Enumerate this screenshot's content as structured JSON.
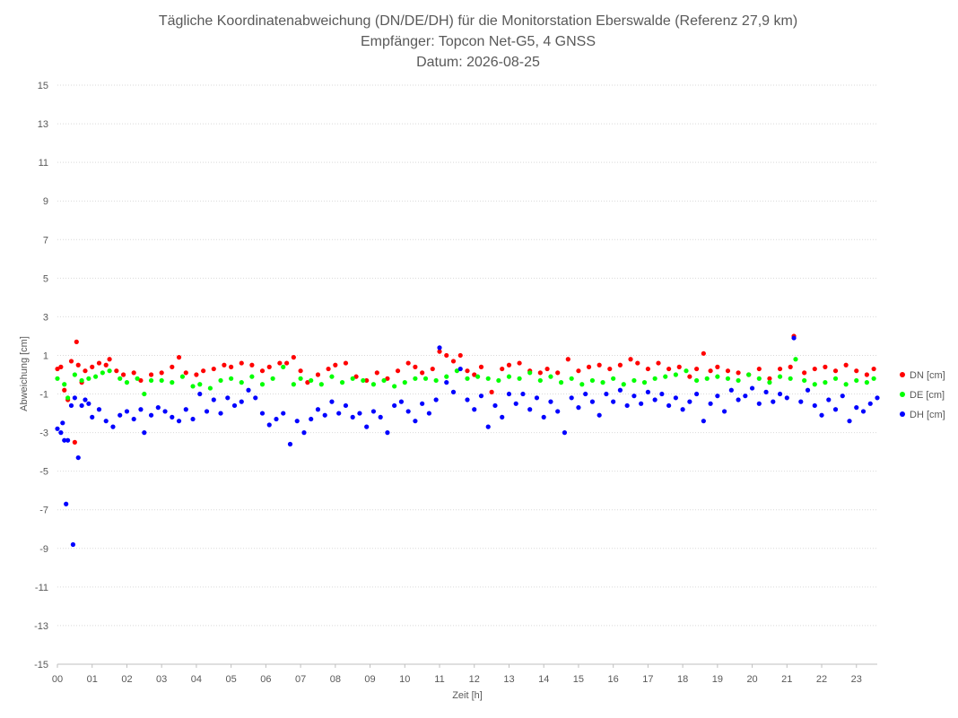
{
  "chart_data": {
    "type": "scatter",
    "title": "Tägliche Koordinatenabweichung (DN/DE/DH) für die Monitorstation Eberswalde (Referenz 27,9 km)",
    "subtitle_1": "Empfänger: Topcon Net-G5, 4 GNSS",
    "subtitle_2": "Datum: 2026-08-25",
    "xlabel": "Zeit [h]",
    "ylabel": "Abweichung [cm]",
    "xlim": [
      0,
      23.6
    ],
    "ylim": [
      -15,
      15
    ],
    "x_ticks": [
      "00",
      "01",
      "02",
      "03",
      "04",
      "05",
      "06",
      "07",
      "08",
      "09",
      "10",
      "11",
      "12",
      "13",
      "14",
      "15",
      "16",
      "17",
      "18",
      "19",
      "20",
      "21",
      "22",
      "23"
    ],
    "y_ticks": [
      "15",
      "13",
      "11",
      "9",
      "7",
      "5",
      "3",
      "1",
      "-1",
      "-3",
      "-5",
      "-7",
      "-9",
      "-11",
      "-13",
      "-15"
    ],
    "grid": "horizontal-dotted",
    "legend_position": "right",
    "series": [
      {
        "name": "DN [cm]",
        "color": "#ff0000",
        "points": [
          [
            0.0,
            0.3
          ],
          [
            0.1,
            0.4
          ],
          [
            0.2,
            -0.8
          ],
          [
            0.3,
            -1.3
          ],
          [
            0.4,
            0.7
          ],
          [
            0.5,
            -3.5
          ],
          [
            0.55,
            1.7
          ],
          [
            0.6,
            0.5
          ],
          [
            0.7,
            -0.4
          ],
          [
            0.8,
            0.2
          ],
          [
            1.0,
            0.4
          ],
          [
            1.2,
            0.6
          ],
          [
            1.4,
            0.5
          ],
          [
            1.5,
            0.8
          ],
          [
            1.7,
            0.2
          ],
          [
            1.9,
            0.0
          ],
          [
            2.2,
            0.1
          ],
          [
            2.4,
            -0.3
          ],
          [
            2.7,
            0.0
          ],
          [
            3.0,
            0.1
          ],
          [
            3.3,
            0.4
          ],
          [
            3.5,
            0.9
          ],
          [
            3.7,
            0.1
          ],
          [
            4.0,
            0.0
          ],
          [
            4.2,
            0.2
          ],
          [
            4.5,
            0.3
          ],
          [
            4.8,
            0.5
          ],
          [
            5.0,
            0.4
          ],
          [
            5.3,
            0.6
          ],
          [
            5.6,
            0.5
          ],
          [
            5.9,
            0.2
          ],
          [
            6.1,
            0.4
          ],
          [
            6.4,
            0.6
          ],
          [
            6.6,
            0.6
          ],
          [
            6.8,
            0.9
          ],
          [
            7.0,
            0.2
          ],
          [
            7.2,
            -0.4
          ],
          [
            7.5,
            0.0
          ],
          [
            7.8,
            0.3
          ],
          [
            8.0,
            0.5
          ],
          [
            8.3,
            0.6
          ],
          [
            8.6,
            -0.1
          ],
          [
            8.9,
            -0.3
          ],
          [
            9.2,
            0.1
          ],
          [
            9.5,
            -0.2
          ],
          [
            9.8,
            0.2
          ],
          [
            10.1,
            0.6
          ],
          [
            10.3,
            0.4
          ],
          [
            10.5,
            0.1
          ],
          [
            10.8,
            0.3
          ],
          [
            11.0,
            1.2
          ],
          [
            11.2,
            1.0
          ],
          [
            11.4,
            0.7
          ],
          [
            11.6,
            1.0
          ],
          [
            11.8,
            0.2
          ],
          [
            12.0,
            0.0
          ],
          [
            12.2,
            0.4
          ],
          [
            12.5,
            -0.9
          ],
          [
            12.8,
            0.3
          ],
          [
            13.0,
            0.5
          ],
          [
            13.3,
            0.6
          ],
          [
            13.6,
            0.2
          ],
          [
            13.9,
            0.1
          ],
          [
            14.1,
            0.3
          ],
          [
            14.4,
            0.1
          ],
          [
            14.7,
            0.8
          ],
          [
            15.0,
            0.2
          ],
          [
            15.3,
            0.4
          ],
          [
            15.6,
            0.5
          ],
          [
            15.9,
            0.3
          ],
          [
            16.2,
            0.5
          ],
          [
            16.5,
            0.8
          ],
          [
            16.7,
            0.6
          ],
          [
            17.0,
            0.3
          ],
          [
            17.3,
            0.6
          ],
          [
            17.6,
            0.3
          ],
          [
            17.9,
            0.4
          ],
          [
            18.2,
            -0.1
          ],
          [
            18.4,
            0.3
          ],
          [
            18.6,
            1.1
          ],
          [
            18.8,
            0.2
          ],
          [
            19.0,
            0.4
          ],
          [
            19.3,
            0.2
          ],
          [
            19.6,
            0.1
          ],
          [
            19.9,
            0.0
          ],
          [
            20.2,
            0.3
          ],
          [
            20.5,
            -0.2
          ],
          [
            20.8,
            0.3
          ],
          [
            21.1,
            0.4
          ],
          [
            21.2,
            2.0
          ],
          [
            21.5,
            0.1
          ],
          [
            21.8,
            0.3
          ],
          [
            22.1,
            0.4
          ],
          [
            22.4,
            0.2
          ],
          [
            22.7,
            0.5
          ],
          [
            23.0,
            0.2
          ],
          [
            23.3,
            0.0
          ],
          [
            23.5,
            0.3
          ]
        ]
      },
      {
        "name": "DE [cm]",
        "color": "#00ff00",
        "points": [
          [
            0.0,
            -0.2
          ],
          [
            0.2,
            -0.5
          ],
          [
            0.3,
            -1.2
          ],
          [
            0.5,
            0.0
          ],
          [
            0.7,
            -0.3
          ],
          [
            0.9,
            -0.2
          ],
          [
            1.1,
            -0.1
          ],
          [
            1.3,
            0.1
          ],
          [
            1.5,
            0.2
          ],
          [
            1.8,
            -0.2
          ],
          [
            2.0,
            -0.4
          ],
          [
            2.3,
            -0.2
          ],
          [
            2.5,
            -1.0
          ],
          [
            2.7,
            -0.3
          ],
          [
            3.0,
            -0.3
          ],
          [
            3.3,
            -0.4
          ],
          [
            3.6,
            -0.1
          ],
          [
            3.9,
            -0.6
          ],
          [
            4.1,
            -0.5
          ],
          [
            4.4,
            -0.7
          ],
          [
            4.7,
            -0.3
          ],
          [
            5.0,
            -0.2
          ],
          [
            5.3,
            -0.4
          ],
          [
            5.6,
            -0.1
          ],
          [
            5.9,
            -0.5
          ],
          [
            6.2,
            -0.2
          ],
          [
            6.5,
            0.4
          ],
          [
            6.8,
            -0.5
          ],
          [
            7.0,
            -0.2
          ],
          [
            7.3,
            -0.3
          ],
          [
            7.6,
            -0.5
          ],
          [
            7.9,
            -0.1
          ],
          [
            8.2,
            -0.4
          ],
          [
            8.5,
            -0.2
          ],
          [
            8.8,
            -0.3
          ],
          [
            9.1,
            -0.5
          ],
          [
            9.4,
            -0.3
          ],
          [
            9.7,
            -0.6
          ],
          [
            10.0,
            -0.4
          ],
          [
            10.3,
            -0.2
          ],
          [
            10.6,
            -0.2
          ],
          [
            10.9,
            -0.3
          ],
          [
            11.2,
            -0.1
          ],
          [
            11.5,
            0.2
          ],
          [
            11.8,
            -0.2
          ],
          [
            12.1,
            -0.1
          ],
          [
            12.4,
            -0.2
          ],
          [
            12.7,
            -0.3
          ],
          [
            13.0,
            -0.1
          ],
          [
            13.3,
            -0.2
          ],
          [
            13.6,
            0.1
          ],
          [
            13.9,
            -0.3
          ],
          [
            14.2,
            -0.1
          ],
          [
            14.5,
            -0.4
          ],
          [
            14.8,
            -0.2
          ],
          [
            15.1,
            -0.5
          ],
          [
            15.4,
            -0.3
          ],
          [
            15.7,
            -0.4
          ],
          [
            16.0,
            -0.2
          ],
          [
            16.3,
            -0.5
          ],
          [
            16.6,
            -0.3
          ],
          [
            16.9,
            -0.4
          ],
          [
            17.2,
            -0.2
          ],
          [
            17.5,
            -0.1
          ],
          [
            17.8,
            0.0
          ],
          [
            18.1,
            0.2
          ],
          [
            18.4,
            -0.3
          ],
          [
            18.7,
            -0.2
          ],
          [
            19.0,
            -0.1
          ],
          [
            19.3,
            -0.2
          ],
          [
            19.6,
            -0.3
          ],
          [
            19.9,
            0.0
          ],
          [
            20.2,
            -0.2
          ],
          [
            20.5,
            -0.4
          ],
          [
            20.8,
            -0.1
          ],
          [
            21.1,
            -0.2
          ],
          [
            21.25,
            0.8
          ],
          [
            21.5,
            -0.3
          ],
          [
            21.8,
            -0.5
          ],
          [
            22.1,
            -0.4
          ],
          [
            22.4,
            -0.2
          ],
          [
            22.7,
            -0.5
          ],
          [
            23.0,
            -0.3
          ],
          [
            23.3,
            -0.4
          ],
          [
            23.5,
            -0.2
          ]
        ]
      },
      {
        "name": "DH [cm]",
        "color": "#0000ff",
        "points": [
          [
            0.0,
            -2.8
          ],
          [
            0.1,
            -3.0
          ],
          [
            0.15,
            -2.5
          ],
          [
            0.2,
            -3.4
          ],
          [
            0.25,
            -6.7
          ],
          [
            0.3,
            -3.4
          ],
          [
            0.4,
            -1.6
          ],
          [
            0.45,
            -8.8
          ],
          [
            0.5,
            -1.2
          ],
          [
            0.6,
            -4.3
          ],
          [
            0.7,
            -1.6
          ],
          [
            0.8,
            -1.3
          ],
          [
            0.9,
            -1.5
          ],
          [
            1.0,
            -2.2
          ],
          [
            1.2,
            -1.8
          ],
          [
            1.4,
            -2.4
          ],
          [
            1.6,
            -2.7
          ],
          [
            1.8,
            -2.1
          ],
          [
            2.0,
            -1.9
          ],
          [
            2.2,
            -2.3
          ],
          [
            2.4,
            -1.8
          ],
          [
            2.5,
            -3.0
          ],
          [
            2.7,
            -2.1
          ],
          [
            2.9,
            -1.7
          ],
          [
            3.1,
            -1.9
          ],
          [
            3.3,
            -2.2
          ],
          [
            3.5,
            -2.4
          ],
          [
            3.7,
            -1.8
          ],
          [
            3.9,
            -2.3
          ],
          [
            4.1,
            -1.0
          ],
          [
            4.3,
            -1.9
          ],
          [
            4.5,
            -1.3
          ],
          [
            4.7,
            -2.0
          ],
          [
            4.9,
            -1.2
          ],
          [
            5.1,
            -1.6
          ],
          [
            5.3,
            -1.4
          ],
          [
            5.5,
            -0.8
          ],
          [
            5.7,
            -1.2
          ],
          [
            5.9,
            -2.0
          ],
          [
            6.1,
            -2.6
          ],
          [
            6.3,
            -2.3
          ],
          [
            6.5,
            -2.0
          ],
          [
            6.7,
            -3.6
          ],
          [
            6.9,
            -2.4
          ],
          [
            7.1,
            -3.0
          ],
          [
            7.3,
            -2.3
          ],
          [
            7.5,
            -1.8
          ],
          [
            7.7,
            -2.1
          ],
          [
            7.9,
            -1.4
          ],
          [
            8.1,
            -2.0
          ],
          [
            8.3,
            -1.6
          ],
          [
            8.5,
            -2.2
          ],
          [
            8.7,
            -2.0
          ],
          [
            8.9,
            -2.7
          ],
          [
            9.1,
            -1.9
          ],
          [
            9.3,
            -2.2
          ],
          [
            9.5,
            -3.0
          ],
          [
            9.7,
            -1.6
          ],
          [
            9.9,
            -1.4
          ],
          [
            10.1,
            -1.9
          ],
          [
            10.3,
            -2.4
          ],
          [
            10.5,
            -1.5
          ],
          [
            10.7,
            -2.0
          ],
          [
            10.9,
            -1.3
          ],
          [
            11.0,
            1.4
          ],
          [
            11.2,
            -0.4
          ],
          [
            11.4,
            -0.9
          ],
          [
            11.6,
            0.3
          ],
          [
            11.8,
            -1.3
          ],
          [
            12.0,
            -1.8
          ],
          [
            12.2,
            -1.1
          ],
          [
            12.4,
            -2.7
          ],
          [
            12.6,
            -1.6
          ],
          [
            12.8,
            -2.2
          ],
          [
            13.0,
            -1.0
          ],
          [
            13.2,
            -1.5
          ],
          [
            13.4,
            -1.0
          ],
          [
            13.6,
            -1.8
          ],
          [
            13.8,
            -1.2
          ],
          [
            14.0,
            -2.2
          ],
          [
            14.2,
            -1.4
          ],
          [
            14.4,
            -1.9
          ],
          [
            14.6,
            -3.0
          ],
          [
            14.8,
            -1.2
          ],
          [
            15.0,
            -1.7
          ],
          [
            15.2,
            -1.0
          ],
          [
            15.4,
            -1.4
          ],
          [
            15.6,
            -2.1
          ],
          [
            15.8,
            -1.0
          ],
          [
            16.0,
            -1.4
          ],
          [
            16.2,
            -0.8
          ],
          [
            16.4,
            -1.6
          ],
          [
            16.6,
            -1.1
          ],
          [
            16.8,
            -1.5
          ],
          [
            17.0,
            -0.9
          ],
          [
            17.2,
            -1.3
          ],
          [
            17.4,
            -1.0
          ],
          [
            17.6,
            -1.6
          ],
          [
            17.8,
            -1.2
          ],
          [
            18.0,
            -1.8
          ],
          [
            18.2,
            -1.4
          ],
          [
            18.4,
            -1.0
          ],
          [
            18.6,
            -2.4
          ],
          [
            18.8,
            -1.5
          ],
          [
            19.0,
            -1.1
          ],
          [
            19.2,
            -1.9
          ],
          [
            19.4,
            -0.8
          ],
          [
            19.6,
            -1.3
          ],
          [
            19.8,
            -1.1
          ],
          [
            20.0,
            -0.7
          ],
          [
            20.2,
            -1.5
          ],
          [
            20.4,
            -0.9
          ],
          [
            20.6,
            -1.4
          ],
          [
            20.8,
            -1.0
          ],
          [
            21.0,
            -1.2
          ],
          [
            21.2,
            1.9
          ],
          [
            21.4,
            -1.4
          ],
          [
            21.6,
            -0.8
          ],
          [
            21.8,
            -1.6
          ],
          [
            22.0,
            -2.1
          ],
          [
            22.2,
            -1.3
          ],
          [
            22.4,
            -1.8
          ],
          [
            22.6,
            -1.1
          ],
          [
            22.8,
            -2.4
          ],
          [
            23.0,
            -1.7
          ],
          [
            23.2,
            -1.9
          ],
          [
            23.4,
            -1.5
          ],
          [
            23.6,
            -1.2
          ]
        ]
      }
    ]
  }
}
